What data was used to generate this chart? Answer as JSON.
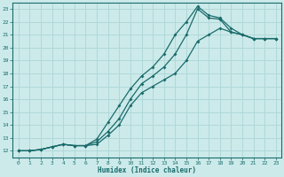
{
  "xlabel": "Humidex (Indice chaleur)",
  "bg_color": "#cceaea",
  "grid_color": "#b0d8d8",
  "line_color": "#1a6b6b",
  "xlim": [
    -0.5,
    23.5
  ],
  "ylim": [
    11.5,
    23.5
  ],
  "xticks": [
    0,
    1,
    2,
    3,
    4,
    5,
    6,
    7,
    8,
    9,
    10,
    11,
    12,
    13,
    14,
    15,
    16,
    17,
    18,
    19,
    20,
    21,
    22,
    23
  ],
  "yticks": [
    12,
    13,
    14,
    15,
    16,
    17,
    18,
    19,
    20,
    21,
    22,
    23
  ],
  "line1_x": [
    0,
    1,
    2,
    3,
    4,
    5,
    6,
    7,
    8,
    9,
    10,
    11,
    12,
    13,
    14,
    15,
    16,
    17,
    18,
    19,
    20,
    21,
    22,
    23
  ],
  "line1_y": [
    12,
    12,
    12.1,
    12.3,
    12.5,
    12.4,
    12.4,
    12.5,
    13.2,
    14.0,
    15.5,
    16.5,
    17.0,
    17.5,
    18.0,
    19.0,
    20.5,
    21.0,
    21.5,
    21.2,
    21.0,
    20.7,
    20.7,
    20.7
  ],
  "line2_x": [
    0,
    1,
    2,
    3,
    4,
    5,
    6,
    7,
    8,
    9,
    10,
    11,
    12,
    13,
    14,
    15,
    16,
    17,
    18,
    19,
    20,
    21,
    22,
    23
  ],
  "line2_y": [
    12,
    12,
    12.1,
    12.3,
    12.5,
    12.4,
    12.4,
    12.7,
    13.5,
    14.5,
    16.0,
    17.2,
    17.8,
    18.5,
    19.5,
    21.0,
    23.0,
    22.3,
    22.2,
    21.2,
    21.0,
    20.7,
    20.7,
    20.7
  ],
  "line3_x": [
    0,
    1,
    2,
    3,
    4,
    5,
    6,
    7,
    8,
    9,
    10,
    11,
    12,
    13,
    14,
    15,
    16,
    17,
    18,
    19,
    20,
    21,
    22,
    23
  ],
  "line3_y": [
    12,
    12,
    12.1,
    12.3,
    12.5,
    12.4,
    12.4,
    12.9,
    14.2,
    15.5,
    16.8,
    17.8,
    18.5,
    19.5,
    21.0,
    22.0,
    23.2,
    22.5,
    22.3,
    21.5,
    21.0,
    20.7,
    20.7,
    20.7
  ]
}
